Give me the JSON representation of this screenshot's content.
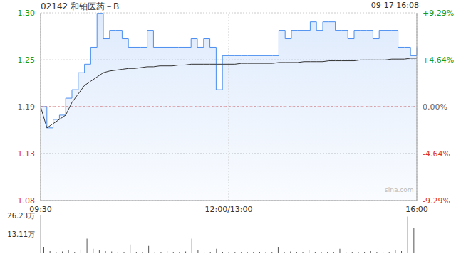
{
  "chart_data": [
    {
      "type": "line",
      "title": "02142 和铂医药－B",
      "subtitle": "09-17 16:08",
      "annotation": "sina.com",
      "categories": [
        "09:30",
        null,
        null,
        null,
        null,
        null,
        null,
        null,
        null,
        null,
        null,
        null,
        null,
        null,
        null,
        null,
        null,
        null,
        null,
        null,
        null,
        null,
        null,
        null,
        null,
        null,
        null,
        null,
        null,
        null,
        "12:00/13:00",
        null,
        null,
        null,
        null,
        null,
        null,
        null,
        null,
        null,
        null,
        null,
        null,
        null,
        null,
        null,
        null,
        null,
        null,
        null,
        null,
        null,
        null,
        null,
        null,
        null,
        null,
        null,
        null,
        null,
        "16:00"
      ],
      "series": [
        {
          "type": "area",
          "color": "#4a8ef0",
          "values": [
            1.19,
            1.165,
            1.175,
            1.18,
            1.2,
            1.21,
            1.23,
            1.24,
            1.26,
            1.3,
            1.27,
            1.28,
            1.28,
            1.27,
            1.26,
            1.26,
            1.26,
            1.28,
            1.26,
            1.26,
            1.26,
            1.26,
            1.26,
            1.26,
            1.27,
            1.26,
            1.27,
            1.26,
            1.21,
            1.25,
            1.25,
            1.25,
            1.25,
            1.25,
            1.25,
            1.25,
            1.25,
            1.25,
            1.28,
            1.27,
            1.28,
            1.28,
            1.28,
            1.29,
            1.28,
            1.29,
            1.29,
            1.28,
            1.28,
            1.27,
            1.28,
            1.28,
            1.28,
            1.27,
            1.28,
            1.28,
            1.28,
            1.26,
            1.26,
            1.25,
            1.26
          ]
        },
        {
          "type": "line",
          "color": "#333333",
          "values": [
            1.19,
            1.165,
            1.17,
            1.175,
            1.18,
            1.195,
            1.205,
            1.215,
            1.22,
            1.225,
            1.23,
            1.232,
            1.233,
            1.234,
            1.235,
            1.235,
            1.236,
            1.237,
            1.237,
            1.238,
            1.238,
            1.238,
            1.239,
            1.239,
            1.24,
            1.24,
            1.24,
            1.24,
            1.24,
            1.24,
            1.24,
            1.24,
            1.241,
            1.241,
            1.241,
            1.241,
            1.241,
            1.241,
            1.242,
            1.242,
            1.242,
            1.242,
            1.243,
            1.243,
            1.243,
            1.243,
            1.244,
            1.244,
            1.244,
            1.244,
            1.244,
            1.245,
            1.245,
            1.245,
            1.245,
            1.245,
            1.246,
            1.246,
            1.246,
            1.247,
            1.247
          ]
        }
      ],
      "prev_close": 1.19,
      "ylim": [
        1.0794,
        1.3006
      ],
      "yticks": [
        {
          "value": 1.3006,
          "label": "1.30"
        },
        {
          "value": 1.2452,
          "label": "1.25"
        },
        1.19,
        {
          "value": 1.1348,
          "label": "1.13"
        },
        {
          "value": 1.0794,
          "label": "1.08"
        }
      ],
      "y2lim": [
        -9.29,
        9.29
      ],
      "y2ticks": [
        {
          "value": 9.29,
          "label": "+9.29%"
        },
        {
          "value": 4.64,
          "label": "+4.64%"
        },
        {
          "value": 0,
          "label": "0.00%"
        },
        {
          "value": -4.64,
          "label": "-4.64%"
        },
        {
          "value": -9.29,
          "label": "-9.29%"
        }
      ],
      "grid": true
    },
    {
      "type": "bar",
      "color": "#555555",
      "tick_labels": "y",
      "values": [
        40000,
        15000,
        8000,
        12000,
        20000,
        10000,
        25000,
        100000,
        30000,
        20000,
        15000,
        12000,
        8000,
        10000,
        60000,
        5000,
        8000,
        50000,
        10000,
        6000,
        15000,
        5000,
        8000,
        12000,
        100000,
        20000,
        10000,
        5000,
        30000,
        8000,
        5000,
        10000,
        4000,
        6000,
        8000,
        5000,
        10000,
        6000,
        40000,
        8000,
        12000,
        5000,
        6000,
        20000,
        8000,
        5000,
        10000,
        6000,
        30000,
        8000,
        5000,
        10000,
        6000,
        15000,
        8000,
        5000,
        10000,
        20000,
        15000,
        250000,
        170000
      ],
      "ylim": [
        0,
        262300
      ],
      "yticks": [
        0,
        {
          "value": 131100,
          "label": "13.11万"
        },
        {
          "value": 262300,
          "label": "26.23万"
        }
      ]
    }
  ]
}
